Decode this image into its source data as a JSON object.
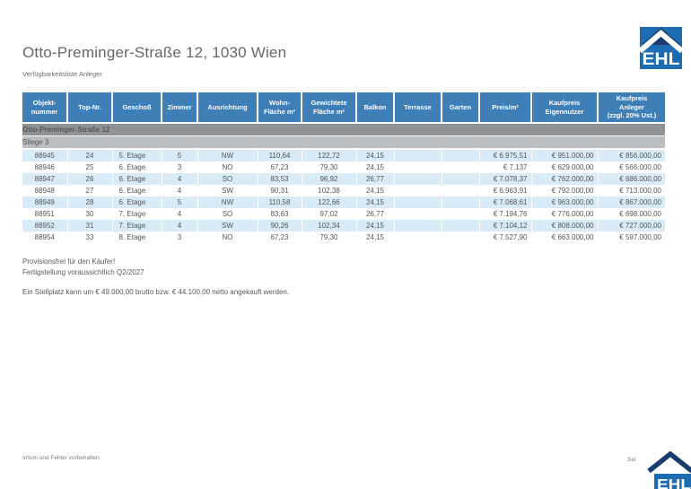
{
  "header": {
    "title": "Otto-Preminger-Straße 12, 1030 Wien",
    "subtitle": "Verfügbarkeitsliste Anleger",
    "logo_text": "EHL"
  },
  "table": {
    "columns": [
      "Objekt-\nnummer",
      "Top-Nr.",
      "Geschoß",
      "Zimmer",
      "Ausrichtung",
      "Wohn-\nFläche m²",
      "Gewichtete\nFläche m²",
      "Balkon",
      "Terrasse",
      "Garten",
      "Preis/m²",
      "Kaufpreis\nEigennutzer",
      "Kaufpreis\nAnleger\n(zzgl. 20% Ust.)"
    ],
    "group_header": "Otto-Preminger-Straße 12",
    "sub_group_header": "Stiege 3",
    "rows": [
      [
        "88945",
        "24",
        "5. Etage",
        "5",
        "NW",
        "110,64",
        "122,72",
        "24,15",
        "",
        "",
        "€ 6.975,51",
        "€ 951.000,00",
        "€ 856.000,00"
      ],
      [
        "88946",
        "25",
        "6. Etage",
        "3",
        "NO",
        "67,23",
        "79,30",
        "24,15",
        "",
        "",
        "€ 7.137",
        "€ 629.000,00",
        "€ 566.000,00"
      ],
      [
        "88947",
        "26",
        "6. Etage",
        "4",
        "SO",
        "83,53",
        "96,92",
        "26,77",
        "",
        "",
        "€ 7.078,37",
        "€ 762.000,00",
        "€ 686.000,00"
      ],
      [
        "88948",
        "27",
        "6. Etage",
        "4",
        "SW",
        "90,31",
        "102,38",
        "24,15",
        "",
        "",
        "€ 6.963,91",
        "€ 792.000,00",
        "€ 713.000,00"
      ],
      [
        "88949",
        "28",
        "6. Etage",
        "5",
        "NW",
        "110,58",
        "122,66",
        "24,15",
        "",
        "",
        "€ 7.068,61",
        "€ 963.000,00",
        "€ 867.000,00"
      ],
      [
        "88951",
        "30",
        "7. Etage",
        "4",
        "SO",
        "83,63",
        "97,02",
        "26,77",
        "",
        "",
        "€ 7.194,76",
        "€ 776.000,00",
        "€ 698.000,00"
      ],
      [
        "88952",
        "31",
        "7. Etage",
        "4",
        "SW",
        "90,26",
        "102,34",
        "24,15",
        "",
        "",
        "€ 7.104,12",
        "€ 808.000,00",
        "€ 727.000,00"
      ],
      [
        "88954",
        "33",
        "8. Etage",
        "3",
        "NO",
        "67,23",
        "79,30",
        "24,15",
        "",
        "",
        "€ 7.527,90",
        "€ 663.000,00",
        "€ 597.000,00"
      ]
    ]
  },
  "notes": {
    "line1": "Provisionsfrei für den Käufer!",
    "line2": "Fertigstellung voraussichtlich Q2/2027",
    "line3": "Ein Stellplatz kann um € 49.000,00 brutto bzw. € 44.100,00 netto angekauft werden."
  },
  "footer": {
    "disclaimer": "Irrtum und Fehler vorbehalten.",
    "page_label": "Sei",
    "logo_text": "EHL"
  },
  "colors": {
    "brand_blue": "#1d6cb2",
    "brand_navy": "#173c6d",
    "header_blue": "#3f7fb8",
    "row_alt_blue": "#d8ebf6",
    "group_band_gray": "#8f9397",
    "subgroup_band_gray": "#bbbec2",
    "text_gray": "#54555a"
  }
}
